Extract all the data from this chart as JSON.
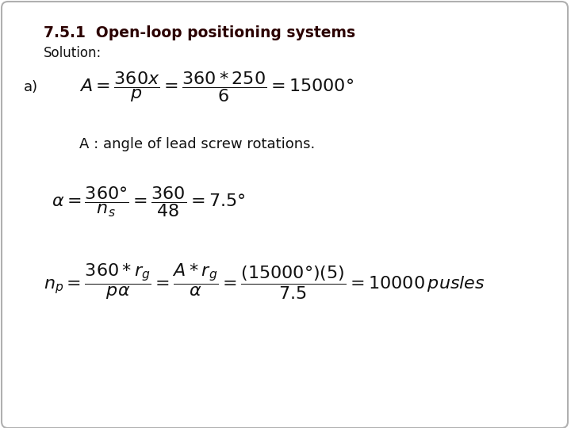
{
  "title": "7.5.1  Open-loop positioning systems",
  "solution_label": "Solution:",
  "part_a_label": "a)",
  "note": "A : angle of lead screw rotations.",
  "bg_color": "#ffffff",
  "border_color": "#b0b0b0",
  "title_color": "#2b0000",
  "text_color": "#111111",
  "title_fontsize": 13.5,
  "label_fontsize": 12,
  "formula_fontsize": 13,
  "note_fontsize": 12
}
